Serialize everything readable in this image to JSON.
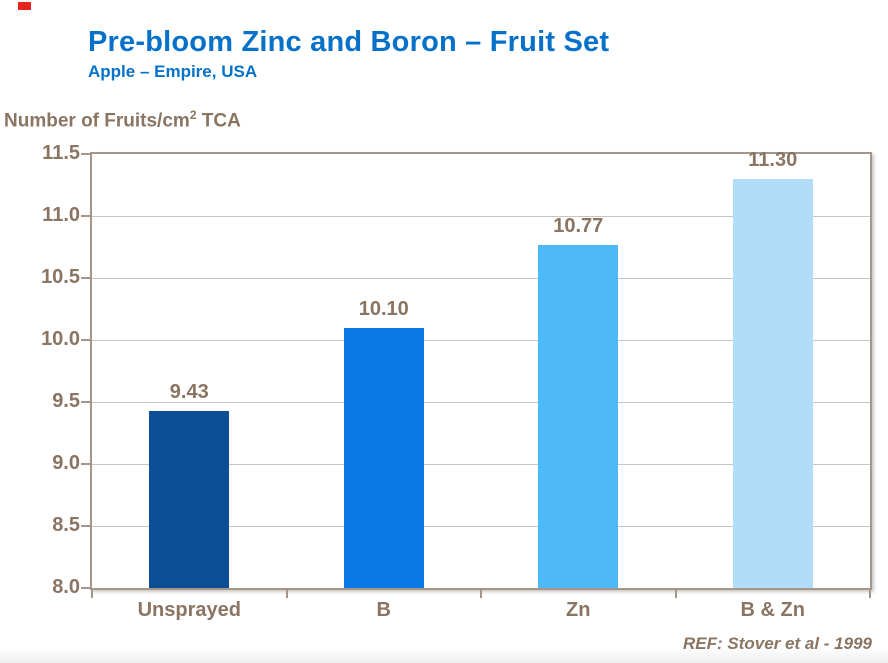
{
  "header": {
    "title": "Pre-bloom Zinc and Boron – Fruit Set",
    "subtitle": "Apple – Empire, USA"
  },
  "axis_title": {
    "prefix": "Number of Fruits/cm",
    "sup": "2",
    "suffix": " TCA"
  },
  "reference": "REF: Stover et al - 1999",
  "colors": {
    "title_blue": "#0671c8",
    "text_brown": "#8a7462",
    "plot_border": "#a59689",
    "gridline": "#ccc4bc",
    "marker_red": "#e8251d"
  },
  "chart_data": {
    "type": "bar",
    "title": "Pre-bloom Zinc and Boron – Fruit Set",
    "subtitle": "Apple – Empire, USA",
    "categories": [
      "Unsprayed",
      "B",
      "Zn",
      "B & Zn"
    ],
    "values": [
      9.43,
      10.1,
      10.77,
      11.3
    ],
    "value_labels": [
      "9.43",
      "10.10",
      "10.77",
      "11.30"
    ],
    "bar_colors": [
      "#0d4f94",
      "#0a79e6",
      "#4db9f7",
      "#b0def8"
    ],
    "xlabel": "",
    "ylabel": "Number of Fruits/cm² TCA",
    "ylim": [
      8.0,
      11.5
    ],
    "ytick_step": 0.5,
    "ytick_labels": [
      "8.0",
      "8.5",
      "9.0",
      "9.5",
      "10.0",
      "10.5",
      "11.0",
      "11.5"
    ],
    "grid": true,
    "legend": false,
    "annotation": "REF: Stover et al - 1999"
  }
}
